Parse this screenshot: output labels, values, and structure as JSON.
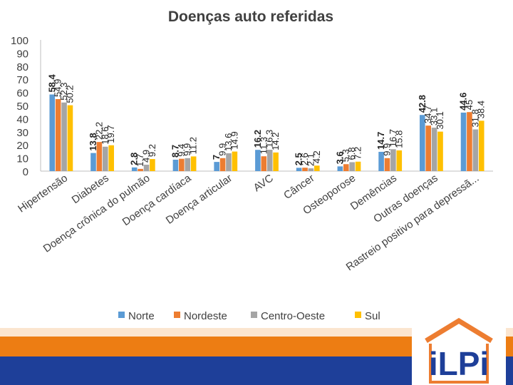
{
  "chart_data": {
    "type": "bar",
    "title": "Doenças auto referidas",
    "ylim": [
      0,
      100
    ],
    "yticks": [
      0,
      10,
      20,
      30,
      40,
      50,
      60,
      70,
      80,
      90,
      100
    ],
    "categories": [
      "Hipertensão",
      "Diabetes",
      "Doença crônica do pulmão",
      "Doença cardíaca",
      "Doença articular",
      "AVC",
      "Câncer",
      "Osteoporose",
      "Demências",
      "Outras doenças",
      "Rastreio positivo para depressã..."
    ],
    "series": [
      {
        "name": "Norte",
        "color": "#5b9bd5",
        "values": [
          58.4,
          13.8,
          2.8,
          8.7,
          7,
          16.2,
          2.5,
          3.6,
          14.7,
          42.8,
          44.6
        ]
      },
      {
        "name": "Nordeste",
        "color": "#ed7d31",
        "values": [
          54.9,
          22.2,
          1.7,
          9.4,
          9.9,
          11.3,
          2.6,
          5.3,
          9.9,
          34.7,
          45
        ]
      },
      {
        "name": "Centro-Oeste",
        "color": "#a5a5a5",
        "values": [
          52.3,
          18.6,
          4.9,
          9.9,
          13.6,
          16.3,
          2.1,
          6.8,
          16.7,
          33.1,
          31.8
        ]
      },
      {
        "name": "Sul",
        "color": "#ffc000",
        "values": [
          50.2,
          19.7,
          9.2,
          11.2,
          14.9,
          14.2,
          4.2,
          7.2,
          15.8,
          30.1,
          38.4
        ]
      }
    ]
  },
  "logo": {
    "text": "iLPi"
  }
}
